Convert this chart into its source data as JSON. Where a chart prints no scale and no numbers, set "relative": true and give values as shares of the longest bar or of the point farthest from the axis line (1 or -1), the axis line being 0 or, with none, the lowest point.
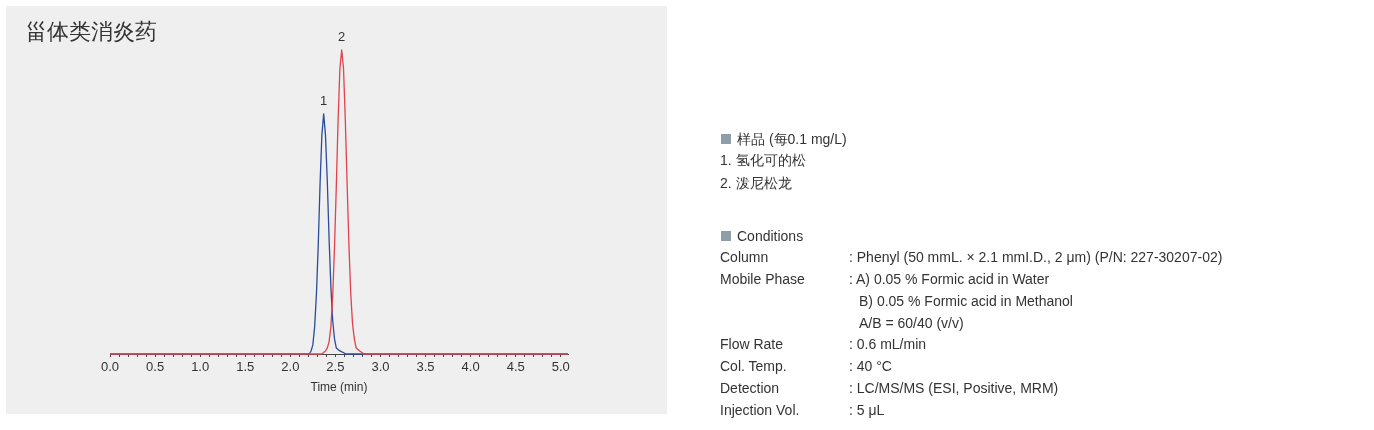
{
  "chart_data": [
    {
      "type": "line",
      "title": "甾体类消炎药",
      "xlabel": "Time (min)",
      "relative": true,
      "marker": "none",
      "xlim": [
        0,
        5.08
      ],
      "xticks": [
        {
          "value": 0,
          "label": "0.0"
        },
        {
          "value": 0.1,
          "label": null
        },
        {
          "value": 0.2,
          "label": null
        },
        {
          "value": 0.3,
          "label": null
        },
        {
          "value": 0.4,
          "label": null
        },
        0.5,
        {
          "value": 0.6,
          "label": null
        },
        {
          "value": 0.7,
          "label": null
        },
        {
          "value": 0.8,
          "label": null
        },
        {
          "value": 0.9,
          "label": null
        },
        {
          "value": 1,
          "label": "1.0"
        },
        {
          "value": 1.1,
          "label": null
        },
        {
          "value": 1.2,
          "label": null
        },
        {
          "value": 1.3,
          "label": null
        },
        {
          "value": 1.4,
          "label": null
        },
        1.5,
        {
          "value": 1.6,
          "label": null
        },
        {
          "value": 1.7,
          "label": null
        },
        {
          "value": 1.8,
          "label": null
        },
        {
          "value": 1.9,
          "label": null
        },
        {
          "value": 2,
          "label": "2.0"
        },
        {
          "value": 2.1,
          "label": null
        },
        {
          "value": 2.2,
          "label": null
        },
        {
          "value": 2.3,
          "label": null
        },
        {
          "value": 2.4,
          "label": null
        },
        2.5,
        {
          "value": 2.6,
          "label": null
        },
        {
          "value": 2.7,
          "label": null
        },
        {
          "value": 2.8,
          "label": null
        },
        {
          "value": 2.9,
          "label": null
        },
        {
          "value": 3,
          "label": "3.0"
        },
        {
          "value": 3.1,
          "label": null
        },
        {
          "value": 3.2,
          "label": null
        },
        {
          "value": 3.3,
          "label": null
        },
        {
          "value": 3.4,
          "label": null
        },
        3.5,
        {
          "value": 3.6,
          "label": null
        },
        {
          "value": 3.7,
          "label": null
        },
        {
          "value": 3.8,
          "label": null
        },
        {
          "value": 3.9,
          "label": null
        },
        {
          "value": 4,
          "label": "4.0"
        },
        {
          "value": 4.1,
          "label": null
        },
        {
          "value": 4.2,
          "label": null
        },
        {
          "value": 4.3,
          "label": null
        },
        {
          "value": 4.4,
          "label": null
        },
        4.5,
        {
          "value": 4.6,
          "label": null
        },
        {
          "value": 4.7,
          "label": null
        },
        {
          "value": 4.8,
          "label": null
        },
        {
          "value": 4.9,
          "label": null
        },
        {
          "value": 5,
          "label": "5.0"
        }
      ],
      "series": [
        {
          "name": "1",
          "color": "#2a4d9a",
          "x": [
            0,
            2.15,
            2.21,
            2.23,
            2.25,
            2.27,
            2.29,
            2.31,
            2.33,
            2.35,
            2.37,
            2.39,
            2.41,
            2.43,
            2.45,
            2.47,
            2.49,
            2.51,
            2.55,
            2.62,
            5.08
          ],
          "values": [
            0,
            0,
            0,
            0.01,
            0.03,
            0.09,
            0.2,
            0.36,
            0.56,
            0.72,
            0.79,
            0.72,
            0.57,
            0.38,
            0.22,
            0.11,
            0.05,
            0.02,
            0.01,
            0,
            0
          ]
        },
        {
          "name": "2",
          "color": "#e0434c",
          "x": [
            0,
            2.35,
            2.39,
            2.41,
            2.43,
            2.45,
            2.47,
            2.49,
            2.51,
            2.53,
            2.55,
            2.57,
            2.59,
            2.61,
            2.63,
            2.65,
            2.67,
            2.69,
            2.71,
            2.73,
            2.77,
            2.82,
            5.08
          ],
          "values": [
            0,
            0,
            0.01,
            0.02,
            0.04,
            0.09,
            0.19,
            0.35,
            0.55,
            0.77,
            0.94,
            1,
            0.94,
            0.77,
            0.56,
            0.36,
            0.2,
            0.1,
            0.05,
            0.02,
            0.01,
            0,
            0
          ]
        }
      ]
    },
    {
      "type": "other",
      "annotations": [
        "样品 (每0.1 mg/L)",
        "1. 氢化可的松",
        "2. 泼尼松龙",
        "Conditions",
        "Column",
        ": Phenyl (50 mmL. × 2.1 mmI.D., 2 μm) (P/N: 227-30207-02)",
        "Mobile Phase",
        ": A) 0.05 % Formic acid in Water",
        "B) 0.05 % Formic acid in Methanol",
        "A/B = 60/40 (v/v)",
        "Flow Rate",
        ": 0.6 mL/min",
        "Col. Temp.",
        ": 40 °C",
        "Detection",
        ": LC/MS/MS (ESI, Positive, MRM)",
        "Injection Vol.",
        ": 5 μL"
      ]
    }
  ]
}
